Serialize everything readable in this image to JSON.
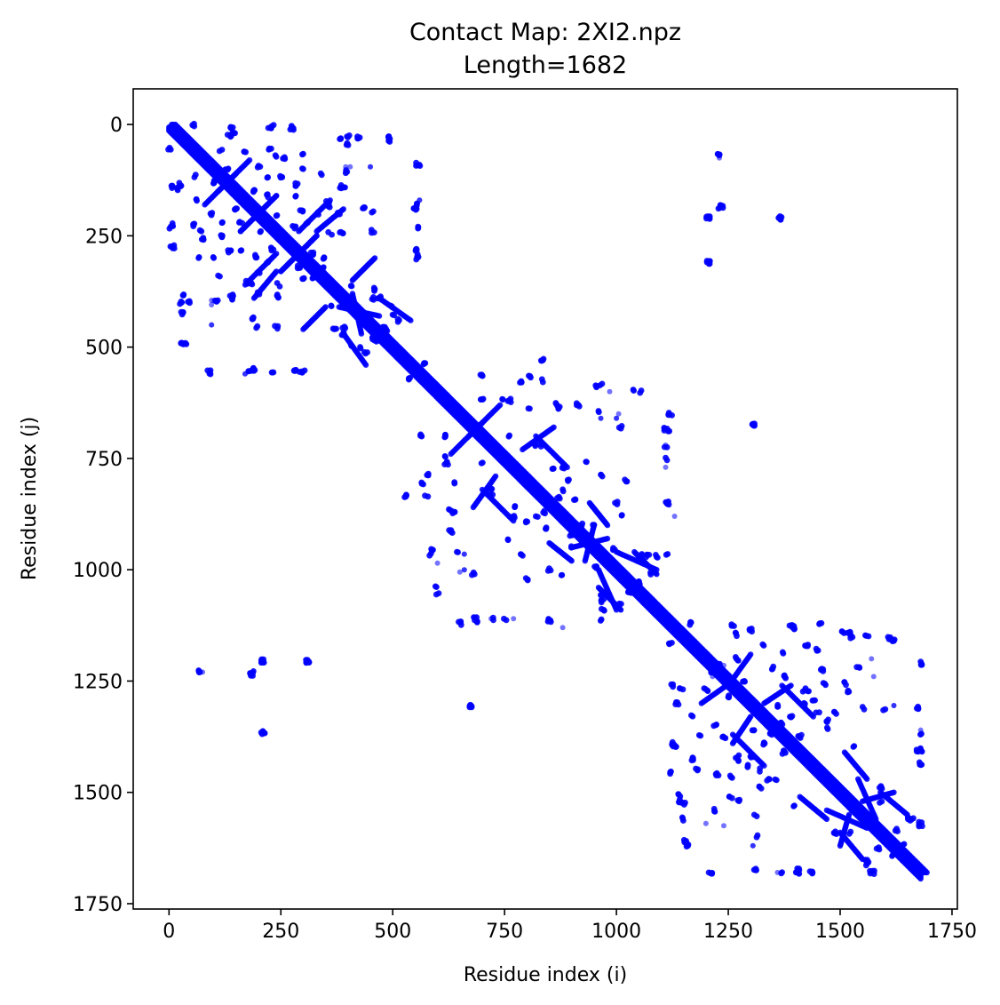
{
  "chart_data": {
    "type": "scatter",
    "title": "Contact Map: 2XI2.npz",
    "subtitle": "Length=1682",
    "xlabel": "Residue index (i)",
    "ylabel": "Residue index (j)",
    "xlim": [
      -80,
      1762
    ],
    "ylim": [
      1762,
      -80
    ],
    "y_inverted": true,
    "xticks": [
      0,
      250,
      500,
      750,
      1000,
      1250,
      1500,
      1750
    ],
    "yticks": [
      0,
      250,
      500,
      750,
      1000,
      1250,
      1500,
      1750
    ],
    "grid": false,
    "legend": "none",
    "sequence_length": 1682,
    "marker_color": "#0000ff",
    "symmetric": true,
    "diagonal_band": {
      "from": 0,
      "to": 1682,
      "min_separation": 6,
      "max_separation": 14
    },
    "secondary_diagonals": [
      {
        "i_start": 5,
        "j_start": 5,
        "i_end": 60,
        "j_end": 60
      },
      {
        "i_start": 1140,
        "j_start": 1140,
        "i_end": 1170,
        "j_end": 1170
      }
    ],
    "contact_segments": [
      {
        "i": [
          80,
          150
        ],
        "j": [
          180,
          110
        ]
      },
      {
        "i": [
          160,
          240
        ],
        "j": [
          240,
          160
        ]
      },
      {
        "i": [
          250,
          330
        ],
        "j": [
          330,
          250
        ]
      },
      {
        "i": [
          240,
          170
        ],
        "j": [
          290,
          360
        ]
      },
      {
        "i": [
          330,
          390
        ],
        "j": [
          240,
          190
        ]
      },
      {
        "i": [
          380,
          470
        ],
        "j": [
          410,
          430
        ]
      },
      {
        "i": [
          390,
          440
        ],
        "j": [
          470,
          540
        ]
      },
      {
        "i": [
          410,
          460
        ],
        "j": [
          350,
          300
        ]
      },
      {
        "i": [
          630,
          700
        ],
        "j": [
          740,
          670
        ]
      },
      {
        "i": [
          700,
          770
        ],
        "j": [
          820,
          890
        ]
      },
      {
        "i": [
          790,
          860
        ],
        "j": [
          730,
          680
        ]
      },
      {
        "i": [
          850,
          900
        ],
        "j": [
          940,
          980
        ]
      },
      {
        "i": [
          900,
          980
        ],
        "j": [
          950,
          930
        ]
      },
      {
        "i": [
          960,
          1010
        ],
        "j": [
          1040,
          1090
        ]
      },
      {
        "i": [
          1000,
          1090
        ],
        "j": [
          960,
          1000
        ]
      },
      {
        "i": [
          1190,
          1260
        ],
        "j": [
          1300,
          1250
        ]
      },
      {
        "i": [
          1260,
          1330
        ],
        "j": [
          1370,
          1440
        ]
      },
      {
        "i": [
          1330,
          1390
        ],
        "j": [
          1300,
          1260
        ]
      },
      {
        "i": [
          1410,
          1470
        ],
        "j": [
          1510,
          1560
        ]
      },
      {
        "i": [
          1470,
          1560
        ],
        "j": [
          1540,
          1580
        ]
      },
      {
        "i": [
          1500,
          1550
        ],
        "j": [
          1590,
          1650
        ]
      },
      {
        "i": [
          1550,
          1620
        ],
        "j": [
          1520,
          1500
        ]
      }
    ],
    "contacts": [
      [
        0,
        55
      ],
      [
        5,
        140
      ],
      [
        5,
        225
      ],
      [
        5,
        275
      ],
      [
        20,
        145
      ],
      [
        25,
        400
      ],
      [
        30,
        490
      ],
      [
        55,
        225
      ],
      [
        65,
        170
      ],
      [
        70,
        240
      ],
      [
        90,
        560
      ],
      [
        95,
        200
      ],
      [
        100,
        130
      ],
      [
        105,
        395
      ],
      [
        115,
        60
      ],
      [
        120,
        250
      ],
      [
        135,
        25
      ],
      [
        140,
        390
      ],
      [
        150,
        190
      ],
      [
        160,
        220
      ],
      [
        175,
        180
      ],
      [
        185,
        360
      ],
      [
        190,
        550
      ],
      [
        195,
        295
      ],
      [
        195,
        455
      ],
      [
        200,
        380
      ],
      [
        205,
        240
      ],
      [
        220,
        120
      ],
      [
        230,
        280
      ],
      [
        230,
        5
      ],
      [
        255,
        75
      ],
      [
        275,
        10
      ],
      [
        280,
        160
      ],
      [
        285,
        135
      ],
      [
        290,
        320
      ],
      [
        300,
        100
      ],
      [
        300,
        555
      ],
      [
        300,
        65
      ],
      [
        310,
        220
      ],
      [
        320,
        345
      ],
      [
        330,
        200
      ],
      [
        340,
        110
      ],
      [
        345,
        300
      ],
      [
        355,
        175
      ],
      [
        360,
        245
      ],
      [
        380,
        30
      ],
      [
        385,
        140
      ],
      [
        385,
        245
      ],
      [
        390,
        455
      ],
      [
        390,
        470
      ],
      [
        400,
        45
      ],
      [
        410,
        365
      ],
      [
        410,
        495
      ],
      [
        425,
        30
      ],
      [
        435,
        190
      ],
      [
        440,
        515
      ],
      [
        455,
        240
      ],
      [
        460,
        370
      ],
      [
        470,
        390
      ],
      [
        480,
        455
      ],
      [
        485,
        460
      ],
      [
        490,
        35
      ],
      [
        500,
        430
      ],
      [
        555,
        90
      ],
      [
        555,
        180
      ],
      [
        555,
        230
      ],
      [
        555,
        280
      ],
      [
        555,
        295
      ],
      [
        565,
        700
      ],
      [
        570,
        540
      ],
      [
        575,
        835
      ],
      [
        580,
        785
      ],
      [
        590,
        955
      ],
      [
        600,
        1055
      ],
      [
        615,
        700
      ],
      [
        625,
        865
      ],
      [
        635,
        805
      ],
      [
        650,
        1120
      ],
      [
        690,
        1115
      ],
      [
        700,
        760
      ],
      [
        720,
        820
      ],
      [
        745,
        615
      ],
      [
        750,
        1110
      ],
      [
        760,
        620
      ],
      [
        770,
        880
      ],
      [
        800,
        1020
      ],
      [
        805,
        565
      ],
      [
        820,
        880
      ],
      [
        830,
        720
      ],
      [
        835,
        530
      ],
      [
        840,
        870
      ],
      [
        850,
        1115
      ],
      [
        860,
        770
      ],
      [
        870,
        635
      ],
      [
        880,
        1010
      ],
      [
        890,
        800
      ],
      [
        900,
        920
      ],
      [
        905,
        840
      ],
      [
        915,
        630
      ],
      [
        935,
        755
      ],
      [
        950,
        900
      ],
      [
        955,
        995
      ],
      [
        960,
        645
      ],
      [
        965,
        585
      ],
      [
        965,
        790
      ],
      [
        970,
        1070
      ],
      [
        1000,
        850
      ],
      [
        1010,
        680
      ],
      [
        1040,
        595
      ],
      [
        1050,
        1030
      ],
      [
        1060,
        965
      ],
      [
        1080,
        1010
      ],
      [
        1090,
        970
      ],
      [
        1110,
        685
      ],
      [
        1110,
        725
      ],
      [
        1110,
        850
      ],
      [
        1115,
        965
      ],
      [
        1120,
        1165
      ],
      [
        1125,
        1260
      ],
      [
        1130,
        1395
      ],
      [
        1135,
        1300
      ],
      [
        1140,
        1520
      ],
      [
        1150,
        1560
      ],
      [
        1155,
        1610
      ],
      [
        1170,
        1330
      ],
      [
        1180,
        1450
      ],
      [
        1185,
        1375
      ],
      [
        1200,
        1270
      ],
      [
        1210,
        1680
      ],
      [
        1230,
        1215
      ],
      [
        1240,
        1375
      ],
      [
        1255,
        1465
      ],
      [
        1265,
        1145
      ],
      [
        1270,
        1420
      ],
      [
        1275,
        1520
      ],
      [
        1285,
        1250
      ],
      [
        1300,
        1420
      ],
      [
        1310,
        1675
      ],
      [
        1320,
        1450
      ],
      [
        1330,
        1390
      ],
      [
        1340,
        1470
      ],
      [
        1350,
        1220
      ],
      [
        1360,
        1305
      ],
      [
        1370,
        1345
      ],
      [
        1375,
        1410
      ],
      [
        1390,
        1125
      ],
      [
        1395,
        1530
      ],
      [
        1400,
        1130
      ],
      [
        1405,
        1675
      ],
      [
        1420,
        1305
      ],
      [
        1425,
        1170
      ],
      [
        1430,
        1275
      ],
      [
        1440,
        1290
      ],
      [
        1455,
        1120
      ],
      [
        1460,
        1225
      ],
      [
        1470,
        1355
      ],
      [
        1490,
        1320
      ],
      [
        1505,
        1140
      ],
      [
        1510,
        1255
      ],
      [
        1520,
        1590
      ],
      [
        1525,
        1150
      ],
      [
        1540,
        1220
      ],
      [
        1550,
        1310
      ],
      [
        1560,
        1655
      ],
      [
        1575,
        1680
      ],
      [
        1590,
        1490
      ],
      [
        1600,
        1315
      ],
      [
        1620,
        1160
      ],
      [
        1625,
        1585
      ],
      [
        1640,
        1620
      ],
      [
        1660,
        1560
      ],
      [
        1680,
        1210
      ],
      [
        1680,
        1370
      ],
      [
        1680,
        1405
      ],
      [
        1680,
        1435
      ],
      [
        1680,
        1570
      ],
      [
        1230,
        70
      ],
      [
        1235,
        185
      ],
      [
        1205,
        210
      ],
      [
        1205,
        310
      ],
      [
        1365,
        210
      ],
      [
        70,
        1230
      ],
      [
        185,
        1230
      ],
      [
        210,
        1205
      ],
      [
        310,
        1205
      ],
      [
        210,
        1365
      ],
      [
        1305,
        675
      ],
      [
        675,
        1310
      ]
    ],
    "faint_contacts": [
      [
        75,
        1230
      ],
      [
        95,
        405
      ],
      [
        95,
        450
      ],
      [
        170,
        560
      ],
      [
        185,
        435
      ],
      [
        395,
        95
      ],
      [
        450,
        95
      ],
      [
        560,
        170
      ],
      [
        965,
        660
      ],
      [
        1000,
        660
      ],
      [
        1110,
        770
      ],
      [
        1130,
        880
      ],
      [
        660,
        965
      ],
      [
        660,
        1000
      ],
      [
        720,
        1110
      ],
      [
        600,
        985
      ],
      [
        650,
        1005
      ],
      [
        690,
        1115
      ],
      [
        1200,
        1570
      ],
      [
        1215,
        1240
      ],
      [
        1305,
        1620
      ],
      [
        1310,
        1675
      ],
      [
        1360,
        1680
      ],
      [
        1575,
        1240
      ],
      [
        1620,
        1305
      ]
    ]
  }
}
